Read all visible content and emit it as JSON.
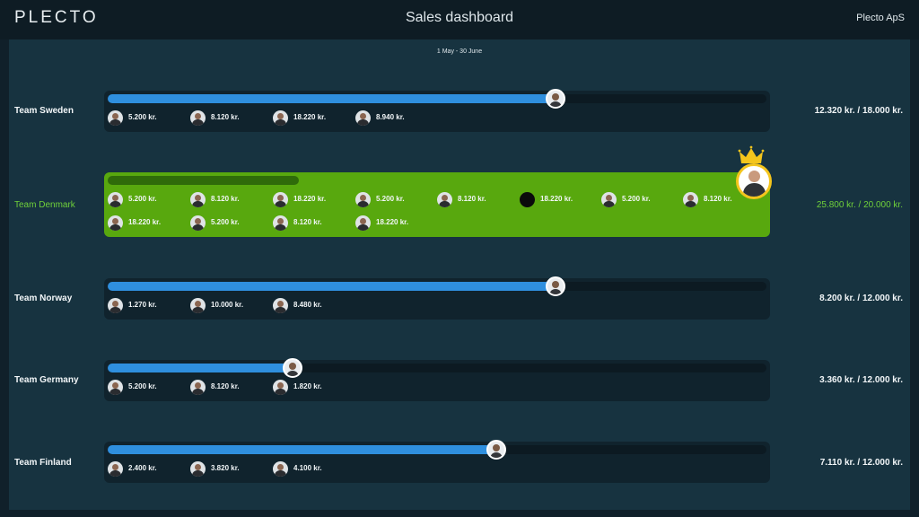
{
  "header": {
    "logo": "PLECTO",
    "title": "Sales dashboard",
    "company": "Plecto ApS"
  },
  "period": "1 May - 30 June",
  "colors": {
    "background": "#173340",
    "accent_blue": "#2f8fde",
    "winner_green": "#58a80e",
    "winner_text": "#6fd03a"
  },
  "teams": [
    {
      "name": "Team Sweden",
      "total": "12.320 kr. / 18.000 kr.",
      "progress": 0.68,
      "winner": false,
      "members": [
        "5.200 kr.",
        "8.120 kr.",
        "18.220 kr.",
        "8.940 kr."
      ]
    },
    {
      "name": "Team Denmark",
      "total": "25.800 kr. / 20.000 kr.",
      "progress": 0.29,
      "winner": true,
      "members": [
        "5.200 kr.",
        "8.120 kr.",
        "18.220 kr.",
        "5.200 kr.",
        "8.120 kr.",
        "18.220 kr.",
        "5.200 kr.",
        "8.120 kr.",
        "18.220 kr.",
        "5.200 kr.",
        "8.120 kr.",
        "18.220 kr."
      ]
    },
    {
      "name": "Team Norway",
      "total": "8.200 kr. / 12.000 kr.",
      "progress": 0.68,
      "winner": false,
      "members": [
        "1.270 kr.",
        "10.000 kr.",
        "8.480 kr."
      ]
    },
    {
      "name": "Team Germany",
      "total": "3.360 kr. / 12.000 kr.",
      "progress": 0.28,
      "winner": false,
      "members": [
        "5.200 kr.",
        "8.120 kr.",
        "1.820 kr."
      ]
    },
    {
      "name": "Team Finland",
      "total": "7.110 kr. / 12.000 kr.",
      "progress": 0.59,
      "winner": false,
      "members": [
        "2.400 kr.",
        "3.820 kr.",
        "4.100 kr."
      ]
    }
  ]
}
